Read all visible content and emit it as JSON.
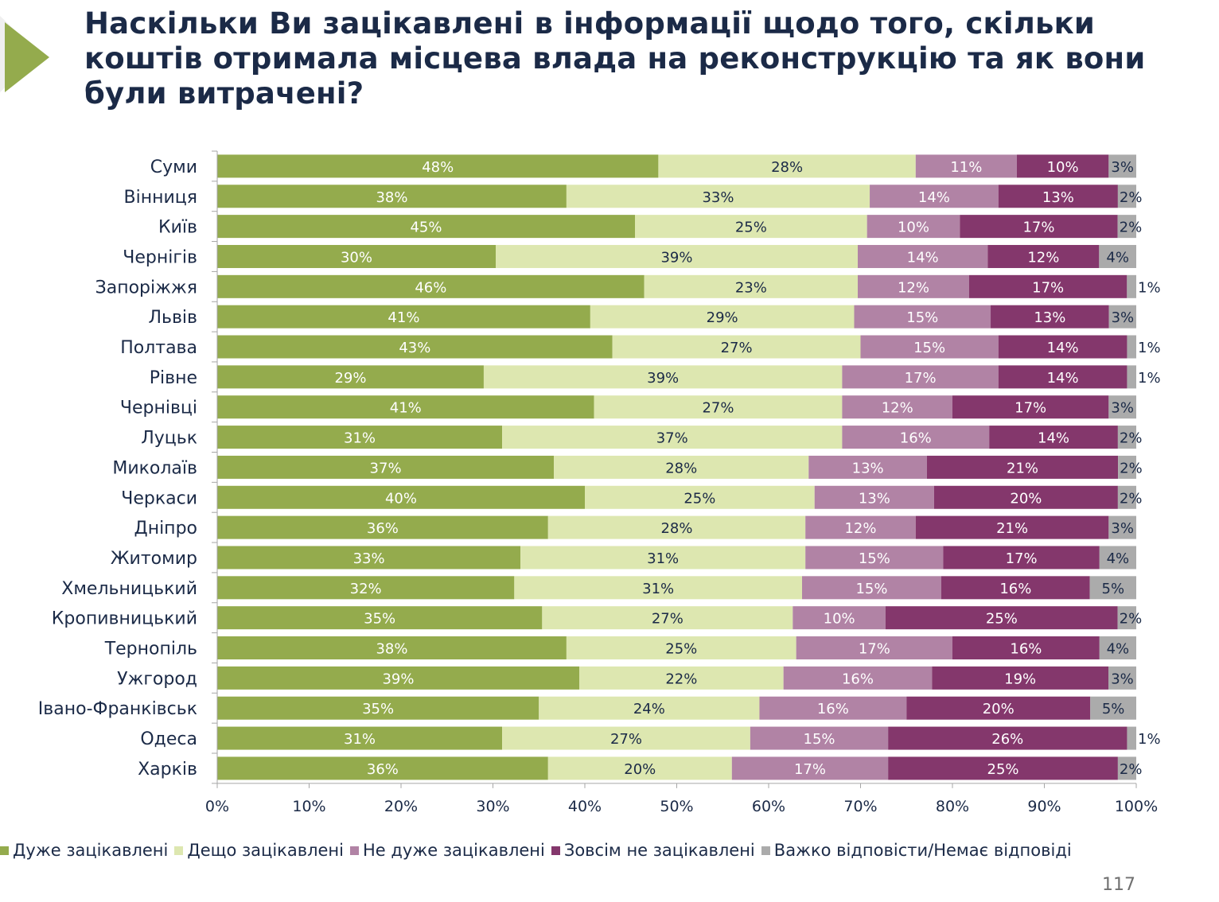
{
  "title": "Наскільки Ви зацікавлені в інформації щодо того, скільки коштів отримала місцева влада на реконструкцію та як вони були витрачені?",
  "page_number": "117",
  "colors": {
    "very": "#94ab4d",
    "somewhat": "#dde7b0",
    "not_very": "#b183a5",
    "not_at_all": "#84376c",
    "dk": "#ababab",
    "text_dark": "#1b2a47",
    "text_light": "#ffffff"
  },
  "chart_data": {
    "type": "bar",
    "orientation": "horizontal",
    "stacked": "percent",
    "title": "Наскільки Ви зацікавлені в інформації щодо того, скільки коштів отримала місцева влада на реконструкцію та як вони були витрачені?",
    "xlabel": "",
    "ylabel": "",
    "xlim": [
      0,
      100
    ],
    "x_ticks": [
      "0%",
      "10%",
      "20%",
      "30%",
      "40%",
      "50%",
      "60%",
      "70%",
      "80%",
      "90%",
      "100%"
    ],
    "grid": false,
    "legend_position": "bottom",
    "categories": [
      "Суми",
      "Вінниця",
      "Київ",
      "Чернігів",
      "Запоріжжя",
      "Львів",
      "Полтава",
      "Рівне",
      "Чернівці",
      "Луцьк",
      "Миколаїв",
      "Черкаси",
      "Дніпро",
      "Житомир",
      "Хмельницький",
      "Кропивницький",
      "Тернопіль",
      "Ужгород",
      "Івано-Франківськ",
      "Одеса",
      "Харків"
    ],
    "series": [
      {
        "name": "Дуже зацікавлені",
        "color_key": "very",
        "label_color": "text_light",
        "values": [
          48,
          38,
          45,
          30,
          46,
          41,
          43,
          29,
          41,
          31,
          37,
          40,
          36,
          33,
          32,
          35,
          38,
          39,
          35,
          31,
          36
        ]
      },
      {
        "name": "Дещо зацікавлені",
        "color_key": "somewhat",
        "label_color": "text_dark",
        "values": [
          28,
          33,
          25,
          39,
          23,
          29,
          27,
          39,
          27,
          37,
          28,
          25,
          28,
          31,
          31,
          27,
          25,
          22,
          24,
          27,
          20
        ]
      },
      {
        "name": "Не дуже зацікавлені",
        "color_key": "not_very",
        "label_color": "text_light",
        "values": [
          11,
          14,
          10,
          14,
          12,
          15,
          15,
          17,
          12,
          16,
          13,
          13,
          12,
          15,
          15,
          10,
          17,
          16,
          16,
          15,
          17
        ]
      },
      {
        "name": "Зовсім не зацікавлені",
        "color_key": "not_at_all",
        "label_color": "text_light",
        "values": [
          10,
          13,
          17,
          12,
          17,
          13,
          14,
          14,
          17,
          14,
          21,
          20,
          21,
          17,
          16,
          25,
          16,
          19,
          20,
          26,
          25
        ]
      },
      {
        "name": "Важко відповісти/Немає відповіді",
        "color_key": "dk",
        "label_color": "text_dark",
        "values": [
          3,
          2,
          2,
          4,
          1,
          3,
          1,
          1,
          3,
          2,
          2,
          2,
          3,
          4,
          5,
          2,
          4,
          3,
          5,
          1,
          2
        ]
      }
    ]
  }
}
